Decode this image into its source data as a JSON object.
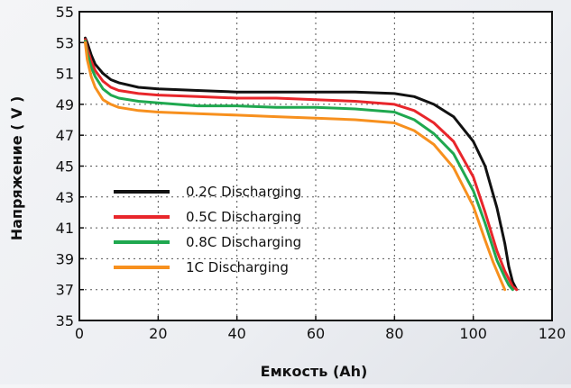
{
  "chart_data": {
    "type": "line",
    "title": "",
    "xlabel": "Емкость (Ah)",
    "ylabel": "Напряжение ( V )",
    "xlim": [
      0,
      120
    ],
    "ylim": [
      35,
      55
    ],
    "xticks": [
      0,
      20,
      40,
      60,
      80,
      100,
      120
    ],
    "yticks": [
      35,
      37,
      39,
      41,
      43,
      45,
      47,
      49,
      51,
      53,
      55
    ],
    "grid": true,
    "legend_position": "bottom-left",
    "series": [
      {
        "name": "0.2C Discharging",
        "color": "#111111",
        "x": [
          1.5,
          2,
          3,
          4,
          6,
          8,
          10,
          15,
          20,
          30,
          40,
          50,
          60,
          70,
          80,
          85,
          90,
          95,
          100,
          103,
          106,
          108,
          109,
          110,
          111
        ],
        "y": [
          53.3,
          53.0,
          52.2,
          51.6,
          51.0,
          50.6,
          50.4,
          50.1,
          50.0,
          49.9,
          49.8,
          49.8,
          49.8,
          49.8,
          49.7,
          49.5,
          49.0,
          48.2,
          46.6,
          45.0,
          42.3,
          40.0,
          38.5,
          37.5,
          37.0
        ]
      },
      {
        "name": "0.5C Discharging",
        "color": "#e8262b",
        "x": [
          1.5,
          2,
          3,
          4,
          6,
          8,
          10,
          15,
          20,
          30,
          40,
          50,
          60,
          70,
          80,
          85,
          90,
          95,
          100,
          103,
          106,
          108,
          109,
          110,
          111
        ],
        "y": [
          53.2,
          52.6,
          51.8,
          51.2,
          50.5,
          50.1,
          49.9,
          49.7,
          49.6,
          49.5,
          49.4,
          49.4,
          49.3,
          49.2,
          49.0,
          48.6,
          47.8,
          46.6,
          44.3,
          42.0,
          39.5,
          38.2,
          37.7,
          37.2,
          37.0
        ]
      },
      {
        "name": "0.8C Discharging",
        "color": "#1fa84f",
        "x": [
          1.5,
          2,
          3,
          4,
          6,
          8,
          10,
          15,
          20,
          30,
          40,
          50,
          60,
          70,
          80,
          85,
          90,
          95,
          100,
          103,
          106,
          108,
          109,
          110
        ],
        "y": [
          53.1,
          52.3,
          51.4,
          50.8,
          50.0,
          49.6,
          49.4,
          49.2,
          49.1,
          48.9,
          48.9,
          48.8,
          48.8,
          48.7,
          48.5,
          48.0,
          47.1,
          45.8,
          43.4,
          41.3,
          38.9,
          37.8,
          37.3,
          37.0
        ]
      },
      {
        "name": "1C Discharging",
        "color": "#f7901e",
        "x": [
          1.5,
          2,
          3,
          4,
          6,
          8,
          10,
          15,
          20,
          30,
          40,
          50,
          60,
          70,
          80,
          85,
          90,
          95,
          100,
          103,
          105,
          107,
          108
        ],
        "y": [
          53.0,
          51.9,
          50.8,
          50.1,
          49.3,
          49.0,
          48.8,
          48.6,
          48.5,
          48.4,
          48.3,
          48.2,
          48.1,
          48.0,
          47.8,
          47.3,
          46.4,
          44.9,
          42.4,
          40.2,
          38.8,
          37.6,
          37.0
        ]
      }
    ]
  }
}
